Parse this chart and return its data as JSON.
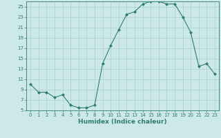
{
  "x": [
    0,
    1,
    2,
    3,
    4,
    5,
    6,
    7,
    8,
    9,
    10,
    11,
    12,
    13,
    14,
    15,
    16,
    17,
    18,
    19,
    20,
    21,
    22,
    23
  ],
  "y": [
    10,
    8.5,
    8.5,
    7.5,
    8,
    6,
    5.5,
    5.5,
    6,
    14,
    17.5,
    20.5,
    23.5,
    24,
    25.5,
    26,
    26,
    25.5,
    25.5,
    23,
    20,
    13.5,
    14,
    12
  ],
  "line_color": "#2e7d6e",
  "marker": "D",
  "marker_size": 2,
  "bg_color": "#cce9e7",
  "grid_color": "#aed4d1",
  "xlabel": "Humidex (Indice chaleur)",
  "xlim": [
    -0.5,
    23.5
  ],
  "ylim": [
    5,
    26
  ],
  "yticks": [
    5,
    7,
    9,
    11,
    13,
    15,
    17,
    19,
    21,
    23,
    25
  ],
  "xticks": [
    0,
    1,
    2,
    3,
    4,
    5,
    6,
    7,
    8,
    9,
    10,
    11,
    12,
    13,
    14,
    15,
    16,
    17,
    18,
    19,
    20,
    21,
    22,
    23
  ],
  "axis_fontsize": 6,
  "tick_fontsize": 5,
  "xlabel_fontsize": 6.5,
  "lw": 0.8
}
